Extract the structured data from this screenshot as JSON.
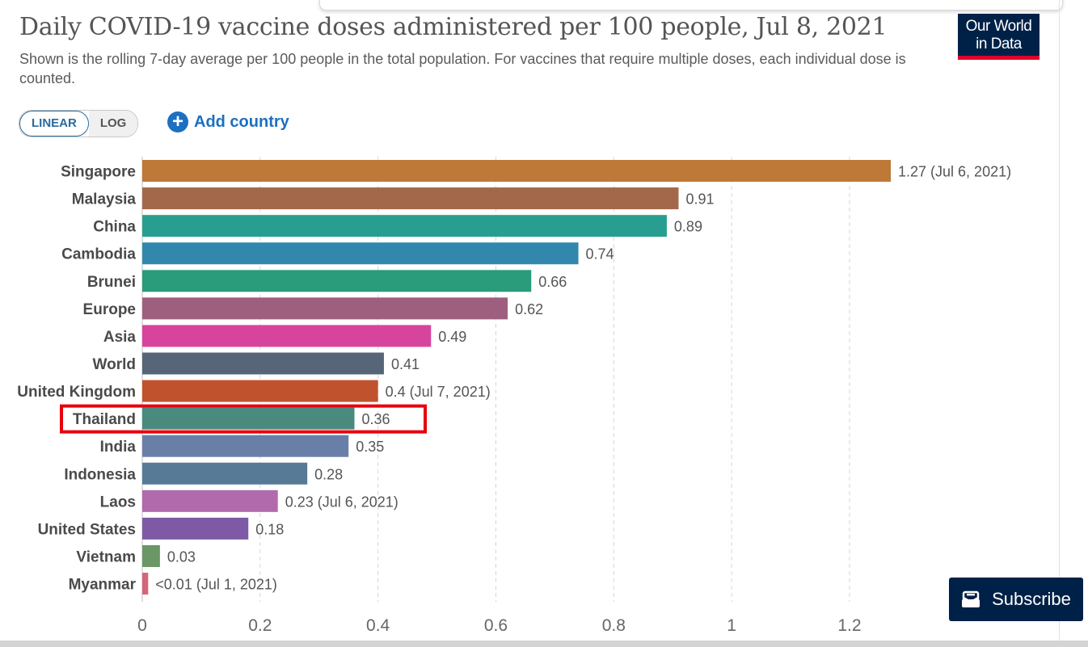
{
  "header": {
    "title": "Daily COVID-19 vaccine doses administered per 100 people, Jul 8, 2021",
    "subtitle": "Shown is the rolling 7-day average per 100 people in the total population. For vaccines that require multiple doses, each individual dose is counted.",
    "logo_line1": "Our World",
    "logo_line2": "in Data"
  },
  "controls": {
    "linear_label": "LINEAR",
    "log_label": "LOG",
    "add_country_label": "Add country"
  },
  "subscribe": {
    "label": "Subscribe"
  },
  "colors": {
    "navy": "#002147",
    "logo_red": "#e0002a",
    "link_blue": "#1d6fc1",
    "highlight": "#e8000b"
  },
  "chart_data": {
    "type": "bar",
    "orientation": "horizontal",
    "title": "Daily COVID-19 vaccine doses administered per 100 people, Jul 8, 2021",
    "xlim": [
      0,
      1.27
    ],
    "xticks": [
      0,
      0.2,
      0.4,
      0.6,
      0.8,
      1,
      1.2
    ],
    "xtick_labels": [
      "0",
      "0.2",
      "0.4",
      "0.6",
      "0.8",
      "1",
      "1.2"
    ],
    "grid": true,
    "highlighted": "Thailand",
    "categories": [
      "Singapore",
      "Malaysia",
      "China",
      "Cambodia",
      "Brunei",
      "Europe",
      "Asia",
      "World",
      "United Kingdom",
      "Thailand",
      "India",
      "Indonesia",
      "Laos",
      "United States",
      "Vietnam",
      "Myanmar"
    ],
    "values": [
      1.27,
      0.91,
      0.89,
      0.74,
      0.66,
      0.62,
      0.49,
      0.41,
      0.4,
      0.36,
      0.35,
      0.28,
      0.23,
      0.18,
      0.03,
      0.01
    ],
    "value_labels": [
      "1.27 (Jul 6, 2021)",
      "0.91",
      "0.89",
      "0.74",
      "0.66",
      "0.62",
      "0.49",
      "0.41",
      "0.4 (Jul 7, 2021)",
      "0.36",
      "0.35",
      "0.28",
      "0.23 (Jul 6, 2021)",
      "0.18",
      "0.03",
      "<0.01 (Jul 1, 2021)"
    ],
    "bar_colors": [
      "#be7837",
      "#a3684a",
      "#289e90",
      "#3288ac",
      "#2a9b7b",
      "#9d5f7d",
      "#d6449c",
      "#566577",
      "#c0532d",
      "#4a8a7e",
      "#6a7fa8",
      "#577a96",
      "#b16aab",
      "#7e5aa6",
      "#6b9665",
      "#d4667a"
    ]
  }
}
